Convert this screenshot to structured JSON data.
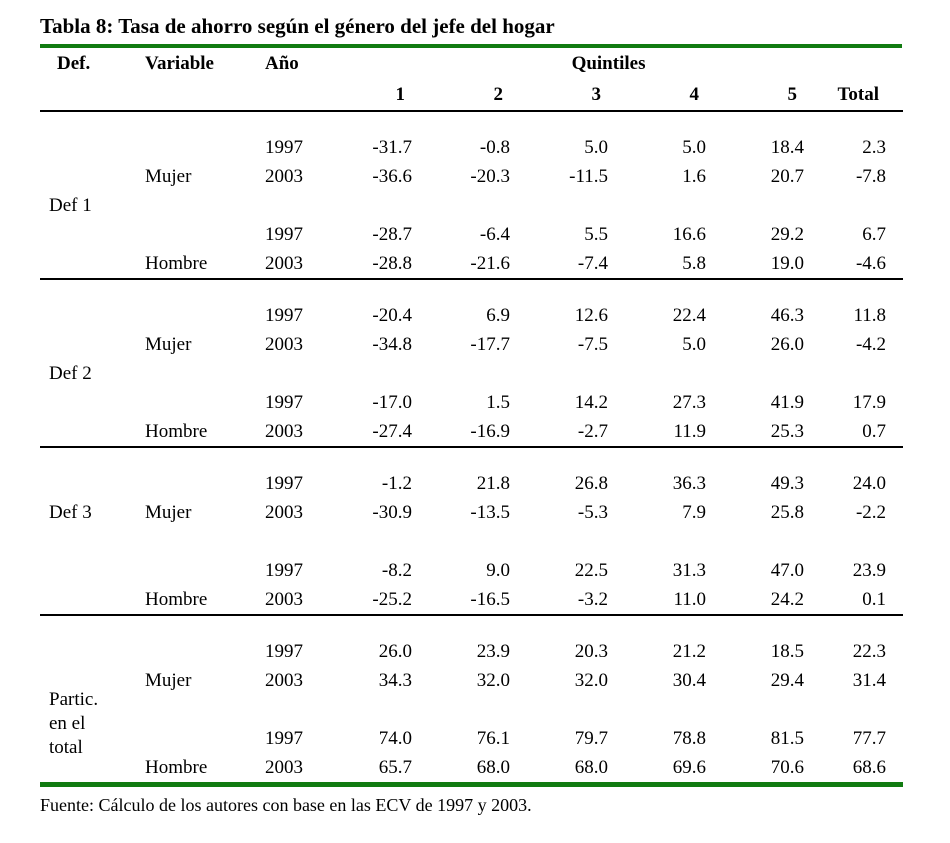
{
  "colors": {
    "accent_green": "#117b11",
    "rule_black": "#000000"
  },
  "chart_data": {
    "type": "table",
    "title": "Tabla 8: Tasa de ahorro según el género del jefe del hogar",
    "col_headers": {
      "def": "Def.",
      "variable": "Variable",
      "year": "Año",
      "group": "Quintiles",
      "quintiles": [
        "1",
        "2",
        "3",
        "4",
        "5"
      ],
      "total": "Total"
    },
    "blocks": [
      {
        "def": "Def 1",
        "rows": [
          {
            "variable": "",
            "year": "1997",
            "values": [
              "-31.7",
              "-0.8",
              "5.0",
              "5.0",
              "18.4",
              "2.3"
            ]
          },
          {
            "variable": "Mujer",
            "year": "2003",
            "values": [
              "-36.6",
              "-20.3",
              "-11.5",
              "1.6",
              "20.7",
              "-7.8"
            ]
          },
          {
            "variable": "",
            "year": "1997",
            "values": [
              "-28.7",
              "-6.4",
              "5.5",
              "16.6",
              "29.2",
              "6.7"
            ]
          },
          {
            "variable": "Hombre",
            "year": "2003",
            "values": [
              "-28.8",
              "-21.6",
              "-7.4",
              "5.8",
              "19.0",
              "-4.6"
            ]
          }
        ]
      },
      {
        "def": "Def 2",
        "rows": [
          {
            "variable": "",
            "year": "1997",
            "values": [
              "-20.4",
              "6.9",
              "12.6",
              "22.4",
              "46.3",
              "11.8"
            ]
          },
          {
            "variable": "Mujer",
            "year": "2003",
            "values": [
              "-34.8",
              "-17.7",
              "-7.5",
              "5.0",
              "26.0",
              "-4.2"
            ]
          },
          {
            "variable": "",
            "year": "1997",
            "values": [
              "-17.0",
              "1.5",
              "14.2",
              "27.3",
              "41.9",
              "17.9"
            ]
          },
          {
            "variable": "Hombre",
            "year": "2003",
            "values": [
              "-27.4",
              "-16.9",
              "-2.7",
              "11.9",
              "25.3",
              "0.7"
            ]
          }
        ]
      },
      {
        "def": "Def 3",
        "rows": [
          {
            "variable": "",
            "year": "1997",
            "values": [
              "-1.2",
              "21.8",
              "26.8",
              "36.3",
              "49.3",
              "24.0"
            ]
          },
          {
            "variable": "Mujer",
            "year": "2003",
            "values": [
              "-30.9",
              "-13.5",
              "-5.3",
              "7.9",
              "25.8",
              "-2.2"
            ]
          },
          {
            "variable": "",
            "year": "1997",
            "values": [
              "-8.2",
              "9.0",
              "22.5",
              "31.3",
              "47.0",
              "23.9"
            ]
          },
          {
            "variable": "Hombre",
            "year": "2003",
            "values": [
              "-25.2",
              "-16.5",
              "-3.2",
              "11.0",
              "24.2",
              "0.1"
            ]
          }
        ]
      },
      {
        "def": "Partic.\nen el\ntotal",
        "rows": [
          {
            "variable": "",
            "year": "1997",
            "values": [
              "26.0",
              "23.9",
              "20.3",
              "21.2",
              "18.5",
              "22.3"
            ]
          },
          {
            "variable": "Mujer",
            "year": "2003",
            "values": [
              "34.3",
              "32.0",
              "32.0",
              "30.4",
              "29.4",
              "31.4"
            ]
          },
          {
            "variable": "",
            "year": "1997",
            "values": [
              "74.0",
              "76.1",
              "79.7",
              "78.8",
              "81.5",
              "77.7"
            ]
          },
          {
            "variable": "Hombre",
            "year": "2003",
            "values": [
              "65.7",
              "68.0",
              "68.0",
              "69.6",
              "70.6",
              "68.6"
            ]
          }
        ]
      }
    ],
    "source": "Fuente: Cálculo de los autores con base en las ECV de 1997 y 2003."
  }
}
